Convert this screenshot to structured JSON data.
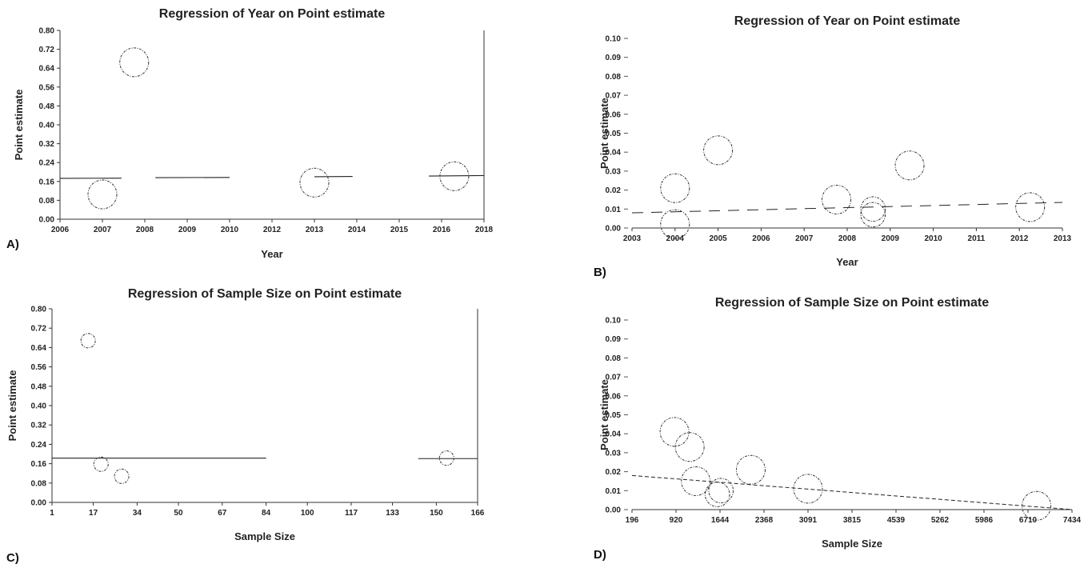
{
  "chart_data": [
    {
      "panel": "A)",
      "type": "scatter",
      "title": "Regression of Year on Point estimate",
      "xlabel": "Year",
      "ylabel": "Point estimate",
      "x_tick_labels": [
        "2006",
        "2007",
        "2008",
        "2009",
        "2010",
        "2012",
        "2013",
        "2014",
        "2015",
        "2016",
        "2018"
      ],
      "y_ticks": [
        "0.00",
        "0.08",
        "0.16",
        "0.24",
        "0.32",
        "0.40",
        "0.48",
        "0.56",
        "0.64",
        "0.72",
        "0.80"
      ],
      "ylim": [
        0,
        0.8
      ],
      "frame": "right-top",
      "points": [
        {
          "x": "2007",
          "offset": 0.0,
          "y": 0.105,
          "size": 1.0
        },
        {
          "x": "2008",
          "offset": -0.25,
          "y": 0.665,
          "size": 1.0
        },
        {
          "x": "2013",
          "offset": 0.0,
          "y": 0.155,
          "size": 1.0
        },
        {
          "x": "2016",
          "offset": 0.3,
          "y": 0.182,
          "size": 1.0
        }
      ],
      "regression_segments": [
        {
          "x0": "2006",
          "x1": "2007",
          "x1_offset": 0.45,
          "y0": 0.173,
          "y1": 0.174
        },
        {
          "x0": "2008",
          "x0_offset": 0.25,
          "x1": "2010",
          "y0": 0.176,
          "y1": 0.177
        },
        {
          "x0": "2013",
          "x1": "2014",
          "x1_offset": -0.1,
          "y0": 0.18,
          "y1": 0.181
        },
        {
          "x0": "2016",
          "x0_offset": -0.3,
          "x1": "2018",
          "y0": 0.183,
          "y1": 0.185
        }
      ]
    },
    {
      "panel": "B)",
      "type": "scatter",
      "title": "Regression of Year on Point estimate",
      "xlabel": "Year",
      "ylabel": "Point estimate",
      "x_tick_labels": [
        "2003",
        "2004",
        "2005",
        "2006",
        "2007",
        "2008",
        "2009",
        "2010",
        "2011",
        "2012",
        "2013"
      ],
      "y_ticks": [
        "0.00",
        "0.01",
        "0.02",
        "0.03",
        "0.04",
        "0.05",
        "0.06",
        "0.07",
        "0.08",
        "0.09",
        "0.10"
      ],
      "ylim": [
        0,
        0.1
      ],
      "frame": "none",
      "points": [
        {
          "x": "2004",
          "offset": 0.0,
          "y": 0.021,
          "size": 1.0
        },
        {
          "x": "2004",
          "offset": 0.0,
          "y": 0.002,
          "size": 1.0
        },
        {
          "x": "2005",
          "offset": 0.0,
          "y": 0.041,
          "size": 1.0
        },
        {
          "x": "2007",
          "offset": 0.75,
          "y": 0.015,
          "size": 1.0
        },
        {
          "x": "2008",
          "offset": 0.6,
          "y": 0.01,
          "size": 0.85
        },
        {
          "x": "2008",
          "offset": 0.6,
          "y": 0.007,
          "size": 0.85
        },
        {
          "x": "2009",
          "offset": 0.45,
          "y": 0.033,
          "size": 1.0
        },
        {
          "x": "2012",
          "offset": 0.25,
          "y": 0.011,
          "size": 1.0
        }
      ],
      "regression_line": {
        "style": "dashed",
        "x0": "2003",
        "y0": 0.008,
        "x1": "2013",
        "y1": 0.0135
      }
    },
    {
      "panel": "C)",
      "type": "scatter",
      "title": "Regression of Sample Size on Point estimate",
      "xlabel": "Sample Size",
      "ylabel": "Point estimate",
      "x_ticks": [
        1,
        17,
        34,
        50,
        67,
        84,
        100,
        117,
        133,
        150,
        166
      ],
      "xlim": [
        1,
        166
      ],
      "y_ticks": [
        "0.00",
        "0.08",
        "0.16",
        "0.24",
        "0.32",
        "0.40",
        "0.48",
        "0.56",
        "0.64",
        "0.72",
        "0.80"
      ],
      "ylim": [
        0,
        0.8
      ],
      "frame": "right-top",
      "points": [
        {
          "x": 15,
          "y": 0.668,
          "size": 0.75
        },
        {
          "x": 20,
          "y": 0.158,
          "size": 0.75
        },
        {
          "x": 28,
          "y": 0.108,
          "size": 0.75
        },
        {
          "x": 154,
          "y": 0.183,
          "size": 0.75
        }
      ],
      "regression_segments": [
        {
          "x0": 1,
          "y0": 0.183,
          "x1": 84,
          "y1": 0.183
        },
        {
          "x0": 143,
          "y0": 0.181,
          "x1": 166,
          "y1": 0.181
        }
      ]
    },
    {
      "panel": "D)",
      "type": "scatter",
      "title": "Regression of Sample  Size on Point estimate",
      "xlabel": "Sample  Size",
      "ylabel": "Point estimate",
      "x_ticks": [
        196,
        920,
        1644,
        2368,
        3091,
        3815,
        4539,
        5262,
        5986,
        6710,
        7434
      ],
      "xlim": [
        196,
        7434
      ],
      "y_ticks": [
        "0.00",
        "0.01",
        "0.02",
        "0.03",
        "0.04",
        "0.05",
        "0.06",
        "0.07",
        "0.08",
        "0.09",
        "0.10"
      ],
      "ylim": [
        0,
        0.1
      ],
      "frame": "none",
      "points": [
        {
          "x": 895,
          "y": 0.041,
          "size": 1.0
        },
        {
          "x": 1145,
          "y": 0.033,
          "size": 1.0
        },
        {
          "x": 1245,
          "y": 0.015,
          "size": 1.0
        },
        {
          "x": 1600,
          "y": 0.008,
          "size": 0.85
        },
        {
          "x": 1660,
          "y": 0.01,
          "size": 0.85
        },
        {
          "x": 2150,
          "y": 0.021,
          "size": 1.0
        },
        {
          "x": 3091,
          "y": 0.011,
          "size": 1.0
        },
        {
          "x": 6850,
          "y": 0.002,
          "size": 1.0
        }
      ],
      "regression_line": {
        "style": "dashed",
        "x0": 196,
        "y0": 0.018,
        "x1": 7434,
        "y1": 0.0
      }
    }
  ]
}
